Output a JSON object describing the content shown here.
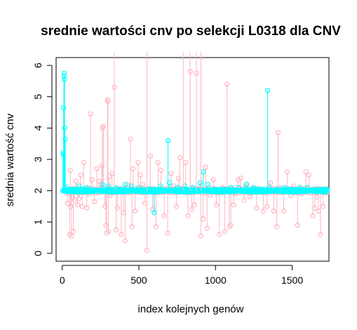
{
  "chart_data": {
    "type": "scatter",
    "title": "srednie wartości cnv po selekcji L0318 dla CNV",
    "xlabel": "index kolejnych genów",
    "ylabel": "srednia wartość cnv",
    "xlim": [
      -40,
      1740
    ],
    "ylim": [
      -0.25,
      6.25
    ],
    "x_ticks": [
      0,
      500,
      1000,
      1500
    ],
    "y_ticks": [
      0,
      1,
      2,
      3,
      4,
      5,
      6
    ],
    "grid": false,
    "baseline": 2,
    "series": [
      {
        "color": "#FFB6C1",
        "style": "points-with-vertical-lines",
        "x": [
          20,
          35,
          48,
          52,
          56,
          60,
          63,
          70,
          72,
          80,
          90,
          100,
          110,
          120,
          130,
          140,
          150,
          160,
          175,
          185,
          195,
          210,
          225,
          240,
          250,
          258,
          262,
          268,
          278,
          285,
          290,
          295,
          298,
          302,
          306,
          312,
          325,
          340,
          352,
          360,
          375,
          385,
          400,
          410,
          425,
          445,
          455,
          462,
          475,
          495,
          510,
          525,
          540,
          552,
          562,
          575,
          590,
          600,
          612,
          625,
          645,
          665,
          680,
          688,
          710,
          728,
          745,
          758,
          768,
          785,
          805,
          820,
          835,
          845,
          862,
          875,
          895,
          905,
          920,
          935,
          945,
          965,
          985,
          1005,
          1025,
          1045,
          1060,
          1075,
          1082,
          1090,
          1100,
          1118,
          1130,
          1148,
          1165,
          1188,
          1205,
          1225,
          1245,
          1268,
          1290,
          1312,
          1335,
          1358,
          1380,
          1400,
          1408,
          1420,
          1445,
          1468,
          1490,
          1510,
          1535,
          1560,
          1578,
          1590,
          1610,
          1635,
          1648,
          1660,
          1672,
          1685,
          1700,
          1718
        ],
        "y": [
          2.05,
          1.6,
          0.6,
          2.65,
          1.5,
          0.55,
          1.8,
          2.0,
          0.7,
          1.7,
          2.3,
          1.55,
          1.75,
          2.5,
          1.5,
          2.9,
          2.0,
          1.45,
          1.9,
          4.45,
          2.35,
          1.65,
          2.7,
          2.3,
          2.1,
          2.8,
          4.0,
          4.05,
          1.5,
          0.9,
          0.65,
          4.9,
          4.85,
          0.7,
          2.45,
          1.85,
          2.55,
          5.3,
          0.75,
          1.45,
          2.0,
          0.6,
          1.3,
          0.4,
          2.2,
          3.65,
          0.85,
          2.7,
          1.35,
          2.9,
          2.5,
          2.2,
          1.6,
          0.1,
          2.05,
          3.1,
          1.4,
          2.0,
          0.85,
          2.9,
          2.65,
          1.2,
          2.0,
          0.65,
          2.55,
          2.15,
          1.5,
          2.4,
          3.05,
          2.0,
          2.9,
          1.2,
          5.8,
          1.4,
          1.55,
          5.75,
          2.05,
          0.55,
          1.1,
          2.75,
          0.8,
          1.85,
          2.35,
          1.55,
          0.6,
          2.1,
          0.7,
          5.4,
          2.05,
          0.85,
          0.9,
          1.55,
          1.9,
          2.35,
          2.4,
          1.7,
          2.2,
          1.8,
          2.1,
          1.45,
          2.0,
          1.35,
          1.5,
          2.25,
          1.35,
          0.85,
          3.85,
          2.1,
          1.35,
          2.6,
          1.85,
          2.15,
          0.9,
          1.9,
          1.95,
          2.6,
          2.5,
          1.2,
          1.45,
          1.8,
          1.35,
          0.6,
          1.5,
          2.05
        ]
      },
      {
        "color": "#00FFFF",
        "style": "points-with-vertical-lines",
        "x": [
          5,
          7,
          9,
          11,
          13,
          15,
          17,
          20,
          24,
          28,
          60,
          110,
          160,
          210,
          262,
          300,
          350,
          410,
          450,
          500,
          560,
          600,
          640,
          690,
          700,
          750,
          800,
          850,
          900,
          920,
          950,
          1000,
          1050,
          1100,
          1150,
          1200,
          1250,
          1300,
          1340,
          1350,
          1400,
          1450,
          1500,
          1550,
          1600,
          1650,
          1700,
          1725
        ],
        "y": [
          3.2,
          3.15,
          4.65,
          5.65,
          5.75,
          5.55,
          4.0,
          3.65,
          2.0,
          2.1,
          2.05,
          2.15,
          2.1,
          2.0,
          2.2,
          2.15,
          2.1,
          2.2,
          2.15,
          2.1,
          2.05,
          1.3,
          2.15,
          3.6,
          2.25,
          2.1,
          2.15,
          2.1,
          2.25,
          2.6,
          2.2,
          2.05,
          2.0,
          2.1,
          2.1,
          2.2,
          2.1,
          2.05,
          5.2,
          2.1,
          2.05,
          2.1,
          2.05,
          2.1,
          2.1,
          2.05,
          2.0,
          2.05
        ]
      }
    ]
  }
}
